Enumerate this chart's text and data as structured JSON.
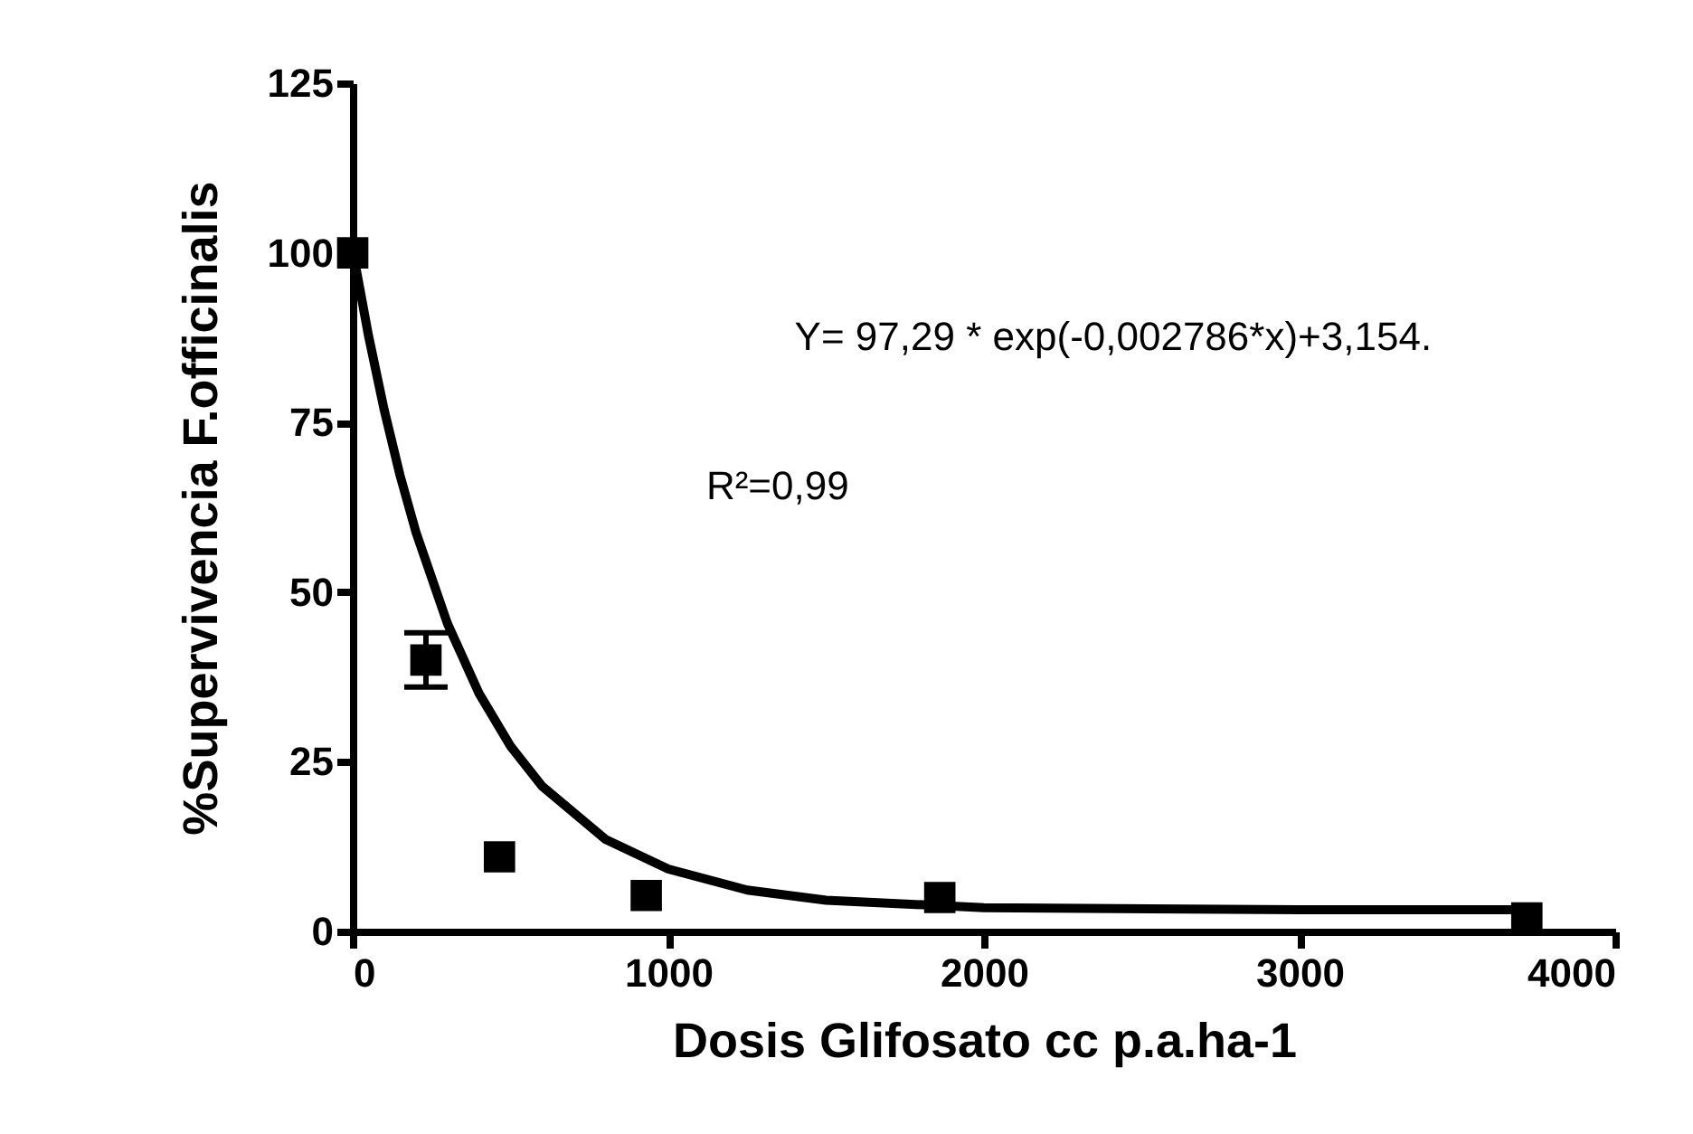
{
  "chart_data": {
    "type": "scatter",
    "xlabel": "Dosis Glifosato cc p.a.ha-1",
    "ylabel": "%Supervivencia F.officinalis",
    "annotations": [
      "Y= 97,29 * exp(-0,002786*x)+3,154.",
      "R²=0,99"
    ],
    "xlim": [
      0,
      4000
    ],
    "xticks": [
      0,
      1000,
      2000,
      3000,
      4000
    ],
    "ylim": [
      0,
      125
    ],
    "yticks": [
      0,
      25,
      50,
      75,
      100,
      125
    ],
    "grid": false,
    "series": [
      {
        "type": "line",
        "color": "#000000",
        "marker": "none",
        "line_style": "solid",
        "x": [
          0,
          50,
          100,
          150,
          200,
          300,
          400,
          500,
          600,
          800,
          1000,
          1250,
          1500,
          2000,
          3000,
          3720
        ],
        "values": [
          100.4,
          87.8,
          76.8,
          67.2,
          58.9,
          45.4,
          35.1,
          27.3,
          21.4,
          13.6,
          9.2,
          6.1,
          4.6,
          3.5,
          3.2,
          3.2
        ]
      },
      {
        "color": "#000000",
        "marker": "square",
        "x": [
          0,
          232,
          465,
          930,
          1860,
          3720
        ],
        "values": [
          100,
          40,
          11,
          5.3,
          5,
          2
        ],
        "errors": [
          null,
          4,
          null,
          null,
          null,
          null
        ]
      }
    ]
  }
}
